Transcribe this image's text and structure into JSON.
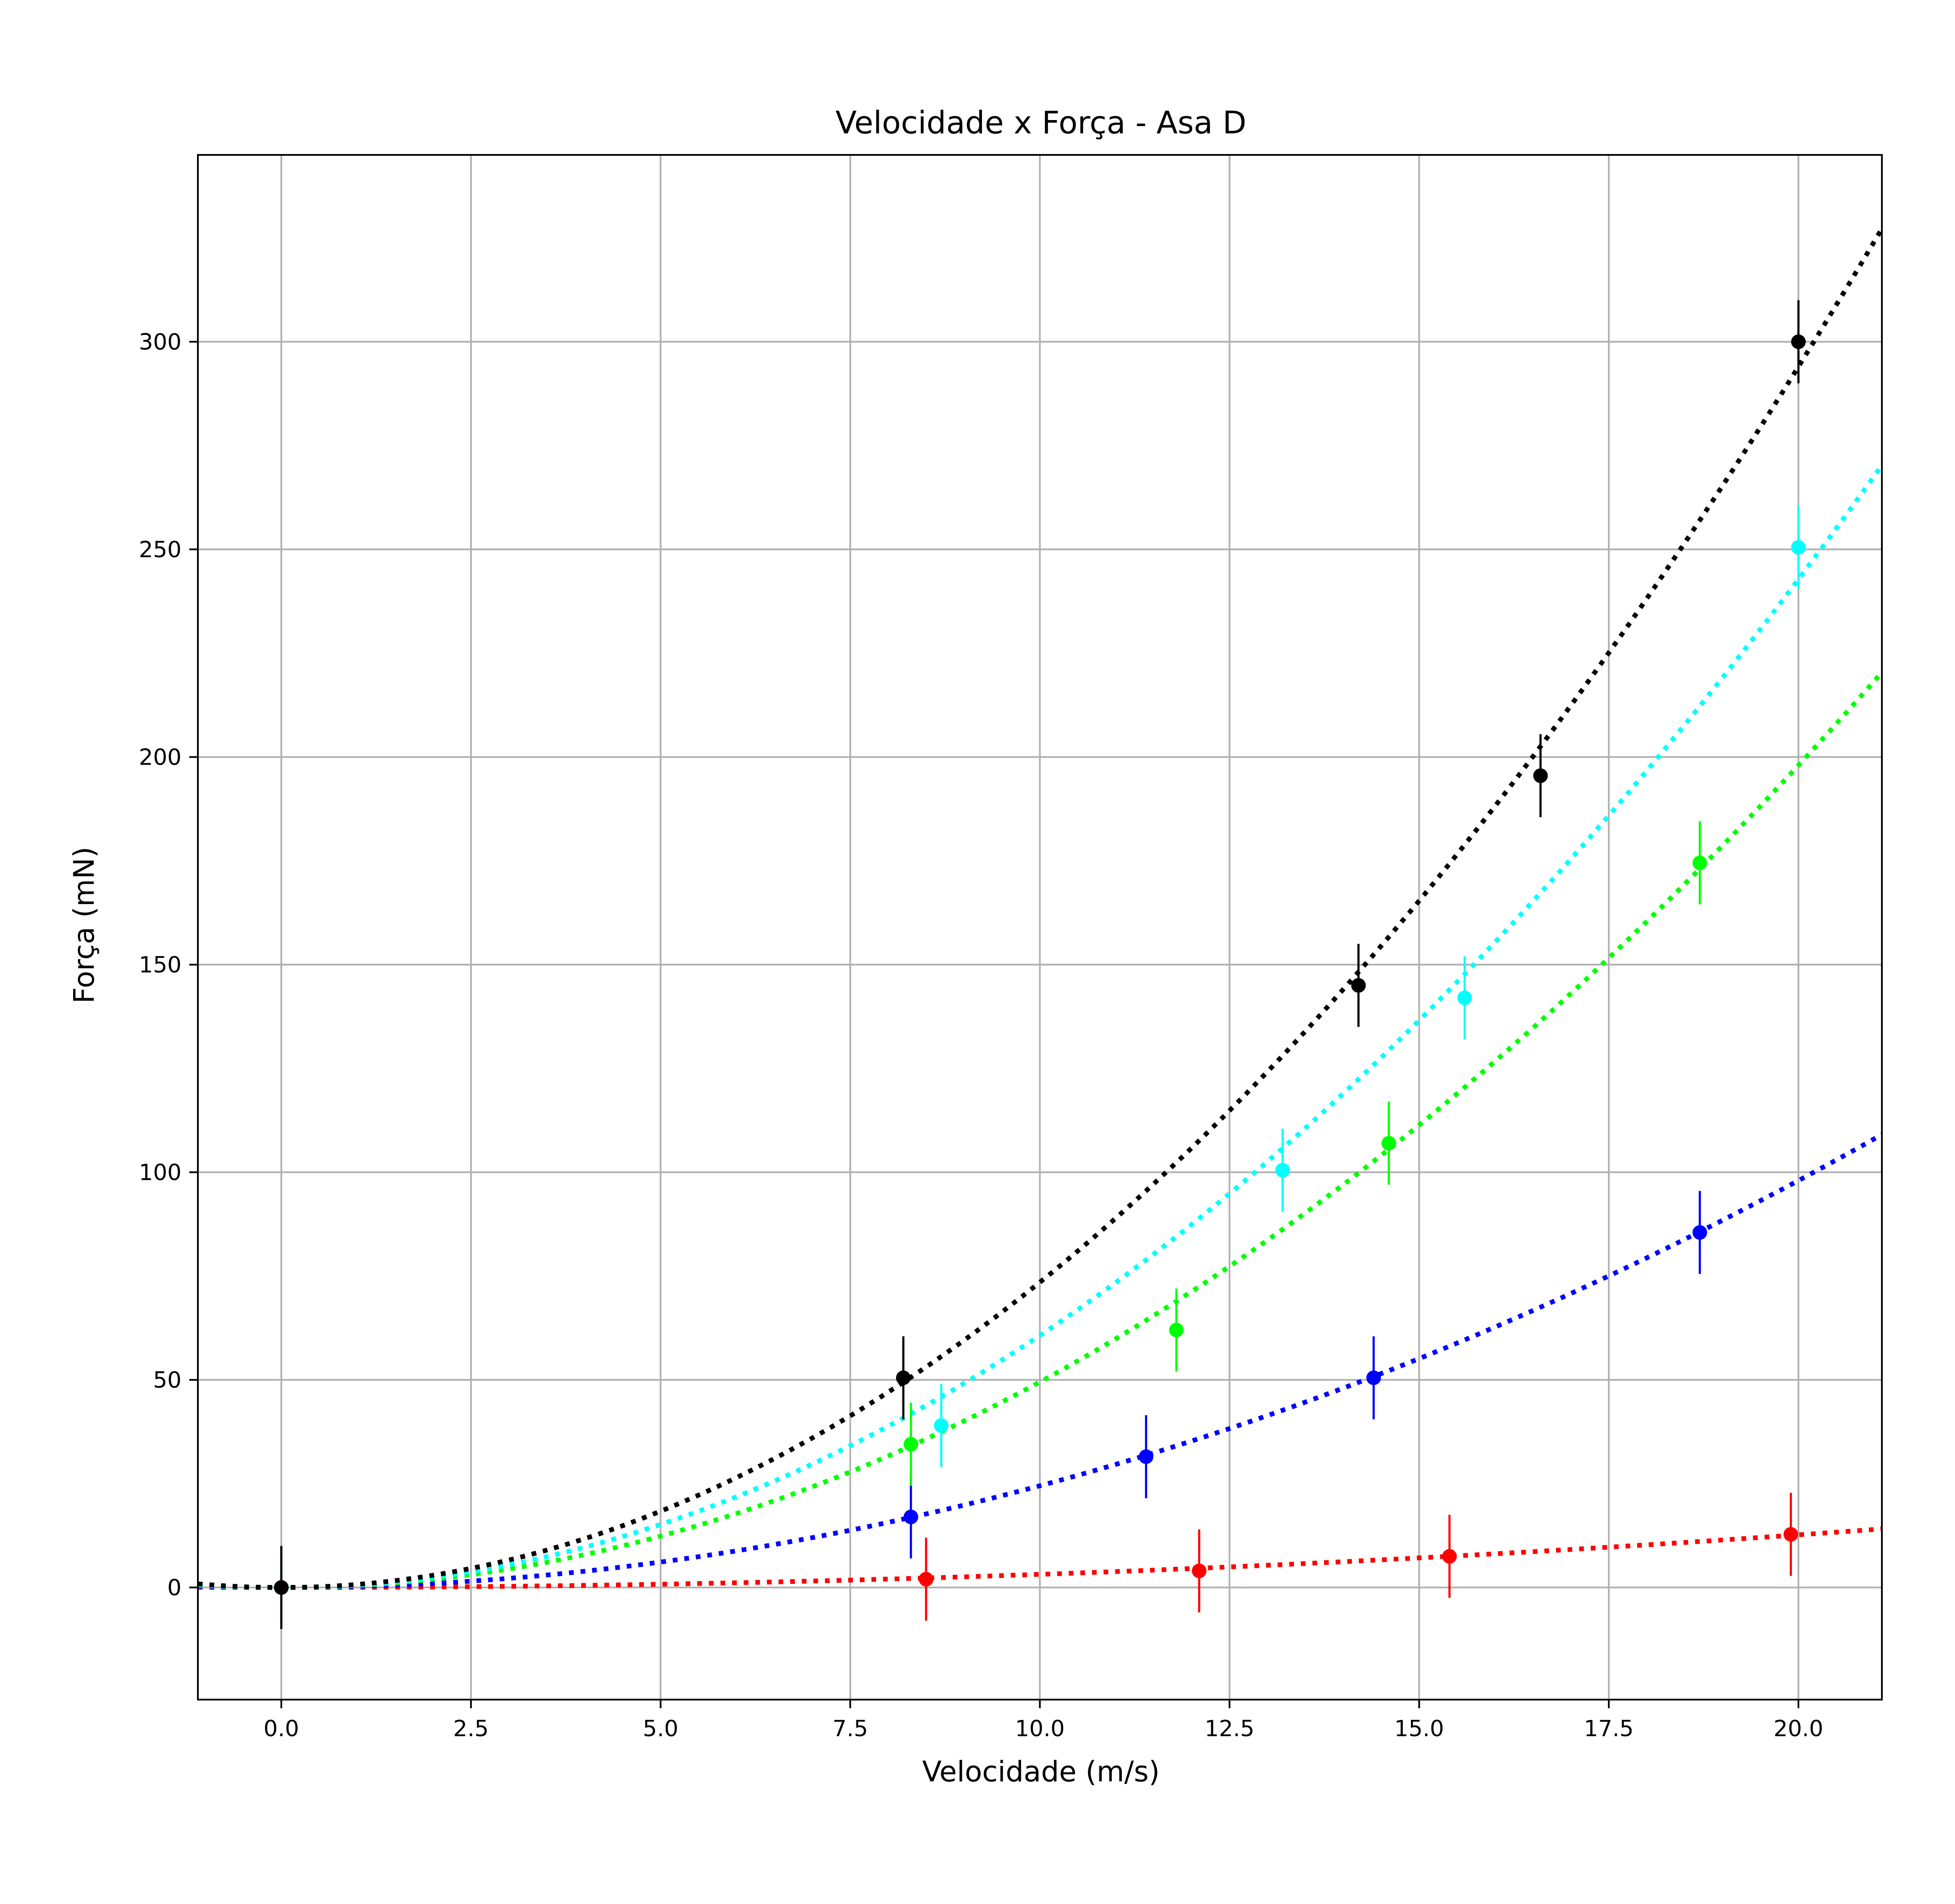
{
  "chart_data": {
    "type": "scatter",
    "title": "Velocidade x Força - Asa D",
    "xlabel": "Velocidade (m/s)",
    "ylabel": "Força (mN)",
    "xlim": [
      -1.1,
      21.1
    ],
    "ylim": [
      -27,
      345
    ],
    "xticks": [
      0,
      2.5,
      5,
      7.5,
      10,
      12.5,
      15,
      17.5,
      20
    ],
    "xtick_labels": [
      "0.0",
      "2.5",
      "5.0",
      "7.5",
      "10.0",
      "12.5",
      "15.0",
      "17.5",
      "20.0"
    ],
    "yticks": [
      0,
      50,
      100,
      150,
      200,
      250,
      300
    ],
    "ytick_labels": [
      "0",
      "50",
      "100",
      "150",
      "200",
      "250",
      "300"
    ],
    "grid": true,
    "error_y": 10,
    "series": [
      {
        "color": "#ff0000",
        "fit_coeff": 0.0317,
        "points": [
          [
            0,
            0
          ],
          [
            8.5,
            2
          ],
          [
            12.1,
            4
          ],
          [
            15.4,
            7.5
          ],
          [
            19.9,
            12.8
          ]
        ]
      },
      {
        "color": "#0000ff",
        "fit_coeff": 0.245,
        "points": [
          [
            0,
            0
          ],
          [
            8.3,
            17
          ],
          [
            11.4,
            31.5
          ],
          [
            14.4,
            50.5
          ],
          [
            18.7,
            85.5
          ]
        ]
      },
      {
        "color": "#00ff00",
        "fit_coeff": 0.495,
        "points": [
          [
            0,
            0
          ],
          [
            8.3,
            34.5
          ],
          [
            11.8,
            62
          ],
          [
            14.6,
            107
          ],
          [
            18.7,
            174.5
          ]
        ]
      },
      {
        "color": "#00ffff",
        "fit_coeff": 0.607,
        "points": [
          [
            0,
            0
          ],
          [
            8.7,
            39
          ],
          [
            13.2,
            100.5
          ],
          [
            15.6,
            142
          ],
          [
            20.0,
            250.5
          ]
        ]
      },
      {
        "color": "#000000",
        "fit_coeff": 0.735,
        "points": [
          [
            0,
            0
          ],
          [
            8.2,
            50.5
          ],
          [
            14.2,
            145
          ],
          [
            16.6,
            195.5
          ],
          [
            20.0,
            300
          ]
        ]
      }
    ]
  }
}
